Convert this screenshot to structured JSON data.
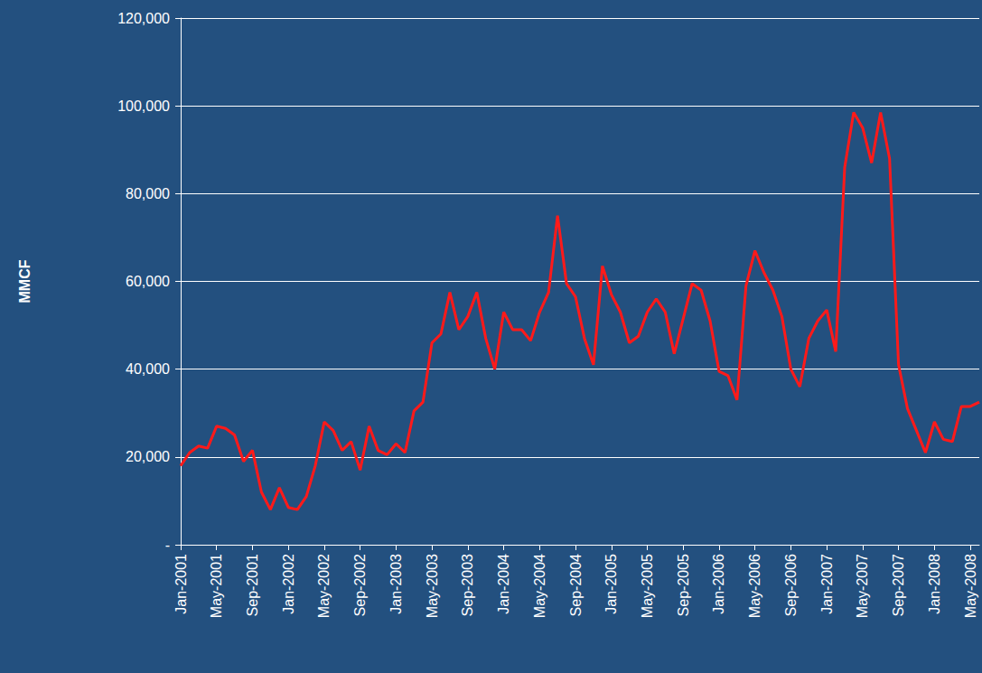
{
  "chart_data": {
    "type": "line",
    "y_label": "MMCF",
    "categories": [
      "Jan-2001",
      null,
      null,
      null,
      "May-2001",
      null,
      null,
      null,
      "Sep-2001",
      null,
      null,
      null,
      "Jan-2002",
      null,
      null,
      null,
      "May-2002",
      null,
      null,
      null,
      "Sep-2002",
      null,
      null,
      null,
      "Jan-2003",
      null,
      null,
      null,
      "May-2003",
      null,
      null,
      null,
      "Sep-2003",
      null,
      null,
      null,
      "Jan-2004",
      null,
      null,
      null,
      "May-2004",
      null,
      null,
      null,
      "Sep-2004",
      null,
      null,
      null,
      "Jan-2005",
      null,
      null,
      null,
      "May-2005",
      null,
      null,
      null,
      "Sep-2005",
      null,
      null,
      null,
      "Jan-2006",
      null,
      null,
      null,
      "May-2006",
      null,
      null,
      null,
      "Sep-2006",
      null,
      null,
      null,
      "Jan-2007",
      null,
      null,
      null,
      "May-2007",
      null,
      null,
      null,
      "Sep-2007",
      null,
      null,
      null,
      "Jan-2008",
      null,
      null,
      null,
      "May-2008",
      null
    ],
    "values": [
      18000,
      21000,
      22500,
      22000,
      27000,
      26500,
      25000,
      19000,
      21500,
      12000,
      8000,
      13000,
      8500,
      8000,
      11000,
      18000,
      28000,
      26000,
      21500,
      23500,
      17000,
      27000,
      21500,
      20500,
      23000,
      21000,
      30500,
      32500,
      46000,
      48000,
      57500,
      49000,
      52000,
      57500,
      47000,
      40000,
      53000,
      49000,
      49000,
      46500,
      53000,
      57500,
      75000,
      59500,
      56500,
      47000,
      41000,
      63500,
      57000,
      53000,
      46000,
      47500,
      53000,
      56000,
      53000,
      43500,
      51500,
      59500,
      58000,
      51000,
      39500,
      38500,
      33000,
      59000,
      67000,
      62000,
      58000,
      52000,
      40000,
      36000,
      47000,
      51000,
      53500,
      44000,
      86000,
      98500,
      95000,
      87000,
      98500,
      88000,
      41000,
      31000,
      26000,
      21000,
      28000,
      24000,
      23500,
      31500,
      31500,
      32500
    ],
    "color": "#ff1a1a",
    "ylim": [
      0,
      120000
    ],
    "yticks": [
      {
        "value": 0,
        "label": "-"
      },
      {
        "value": 20000,
        "label": "20,000"
      },
      {
        "value": 40000,
        "label": "40,000"
      },
      {
        "value": 60000,
        "label": "60,000"
      },
      {
        "value": 80000,
        "label": "80,000"
      },
      {
        "value": 100000,
        "label": "100,000"
      },
      {
        "value": 120000,
        "label": "120,000"
      }
    ],
    "grid": true
  }
}
